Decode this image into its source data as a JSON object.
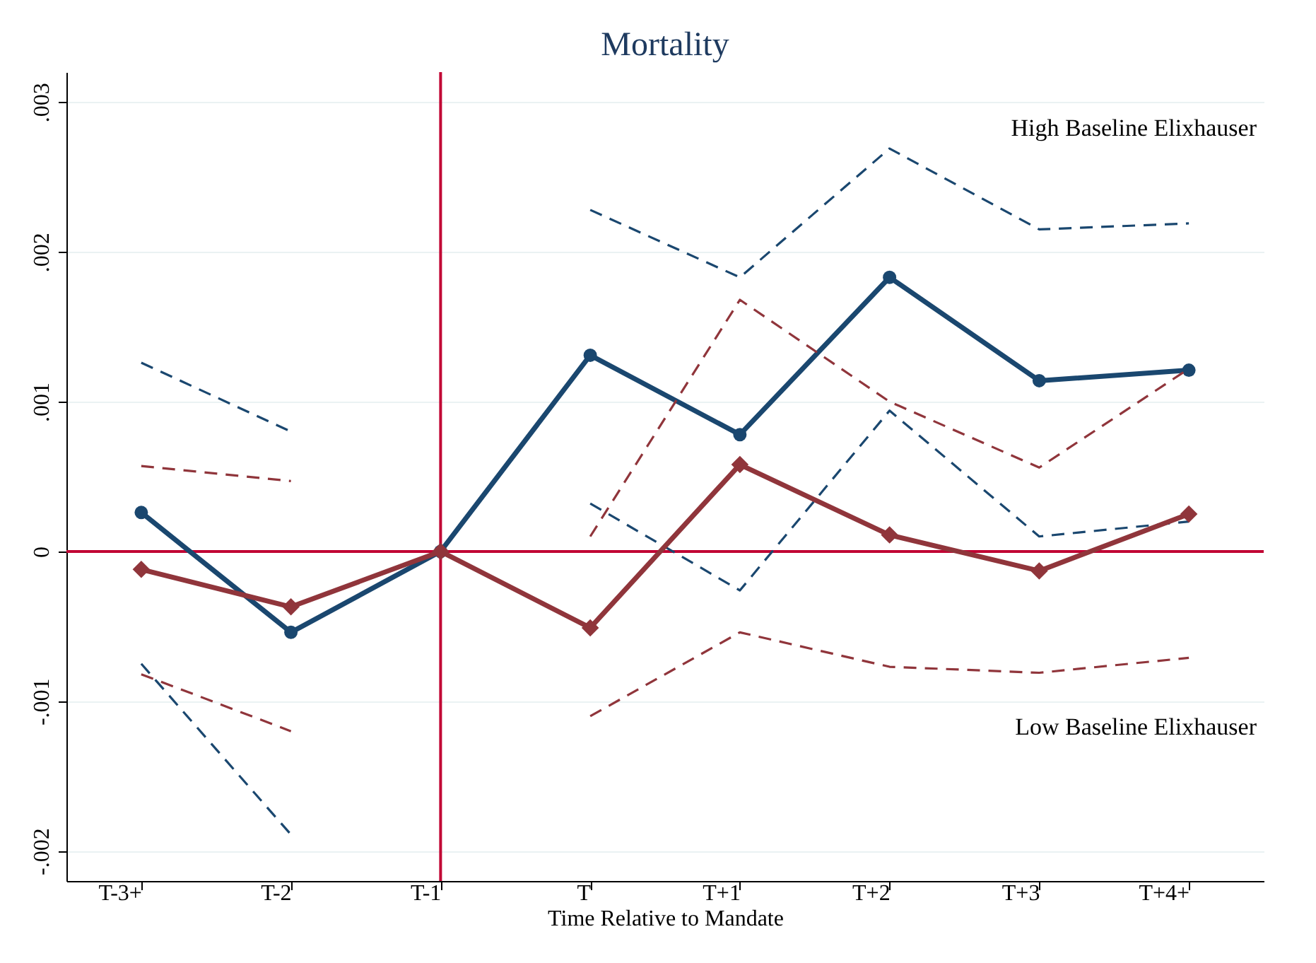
{
  "chart_data": {
    "type": "line",
    "title": "Mortality",
    "xlabel": "Time Relative to Mandate",
    "categories": [
      "T-3+",
      "T-2",
      "T-1",
      "T",
      "T+1",
      "T+2",
      "T+3",
      "T+4+"
    ],
    "series": [
      {
        "color": "#1a476f",
        "marker": "circle",
        "line_style": "solid",
        "values": [
          0.00026,
          -0.00054,
          0,
          0.00131,
          0.00078,
          0.00183,
          0.00114,
          0.00121
        ]
      },
      {
        "color": "#1a476f",
        "marker": "none",
        "line_style": "dashed",
        "values": [
          0.00126,
          0.0008,
          null,
          0.00228,
          0.00183,
          0.00269,
          0.00215,
          0.00219
        ]
      },
      {
        "color": "#1a476f",
        "marker": "none",
        "line_style": "dashed",
        "values": [
          -0.00075,
          -0.00189,
          null,
          0.00032,
          -0.00026,
          0.00094,
          0.0001,
          0.0002
        ]
      },
      {
        "color": "#90353b",
        "marker": "diamond",
        "line_style": "solid",
        "values": [
          -0.00012,
          -0.00037,
          0,
          -0.00051,
          0.00058,
          0.00011,
          -0.00013,
          0.00025
        ]
      },
      {
        "color": "#90353b",
        "marker": "none",
        "line_style": "dashed",
        "values": [
          0.00057,
          0.00047,
          null,
          0.0001,
          0.00168,
          0.001,
          0.00056,
          0.00122
        ]
      },
      {
        "color": "#90353b",
        "marker": "none",
        "line_style": "dashed",
        "values": [
          -0.00082,
          -0.0012,
          null,
          -0.0011,
          -0.00054,
          -0.00077,
          -0.00081,
          -0.00071
        ]
      }
    ],
    "ylim": [
      -0.0022,
      0.0032
    ],
    "yticks": [
      {
        "value": -0.002,
        "label": "-.002"
      },
      {
        "value": -0.001,
        "label": "-.001"
      },
      {
        "value": 0,
        "label": "0"
      },
      {
        "value": 0.001,
        "label": ".001"
      },
      {
        "value": 0.002,
        "label": ".002"
      },
      {
        "value": 0.003,
        "label": ".003"
      }
    ],
    "grid": "y",
    "ref_lines": [
      {
        "axis": "y",
        "value": 0,
        "color": "#c10534"
      },
      {
        "axis": "x",
        "value": "T-1",
        "color": "#c10534"
      }
    ],
    "annotations": [
      "High Baseline Elixhauser",
      "Low Baseline Elixhauser"
    ]
  }
}
